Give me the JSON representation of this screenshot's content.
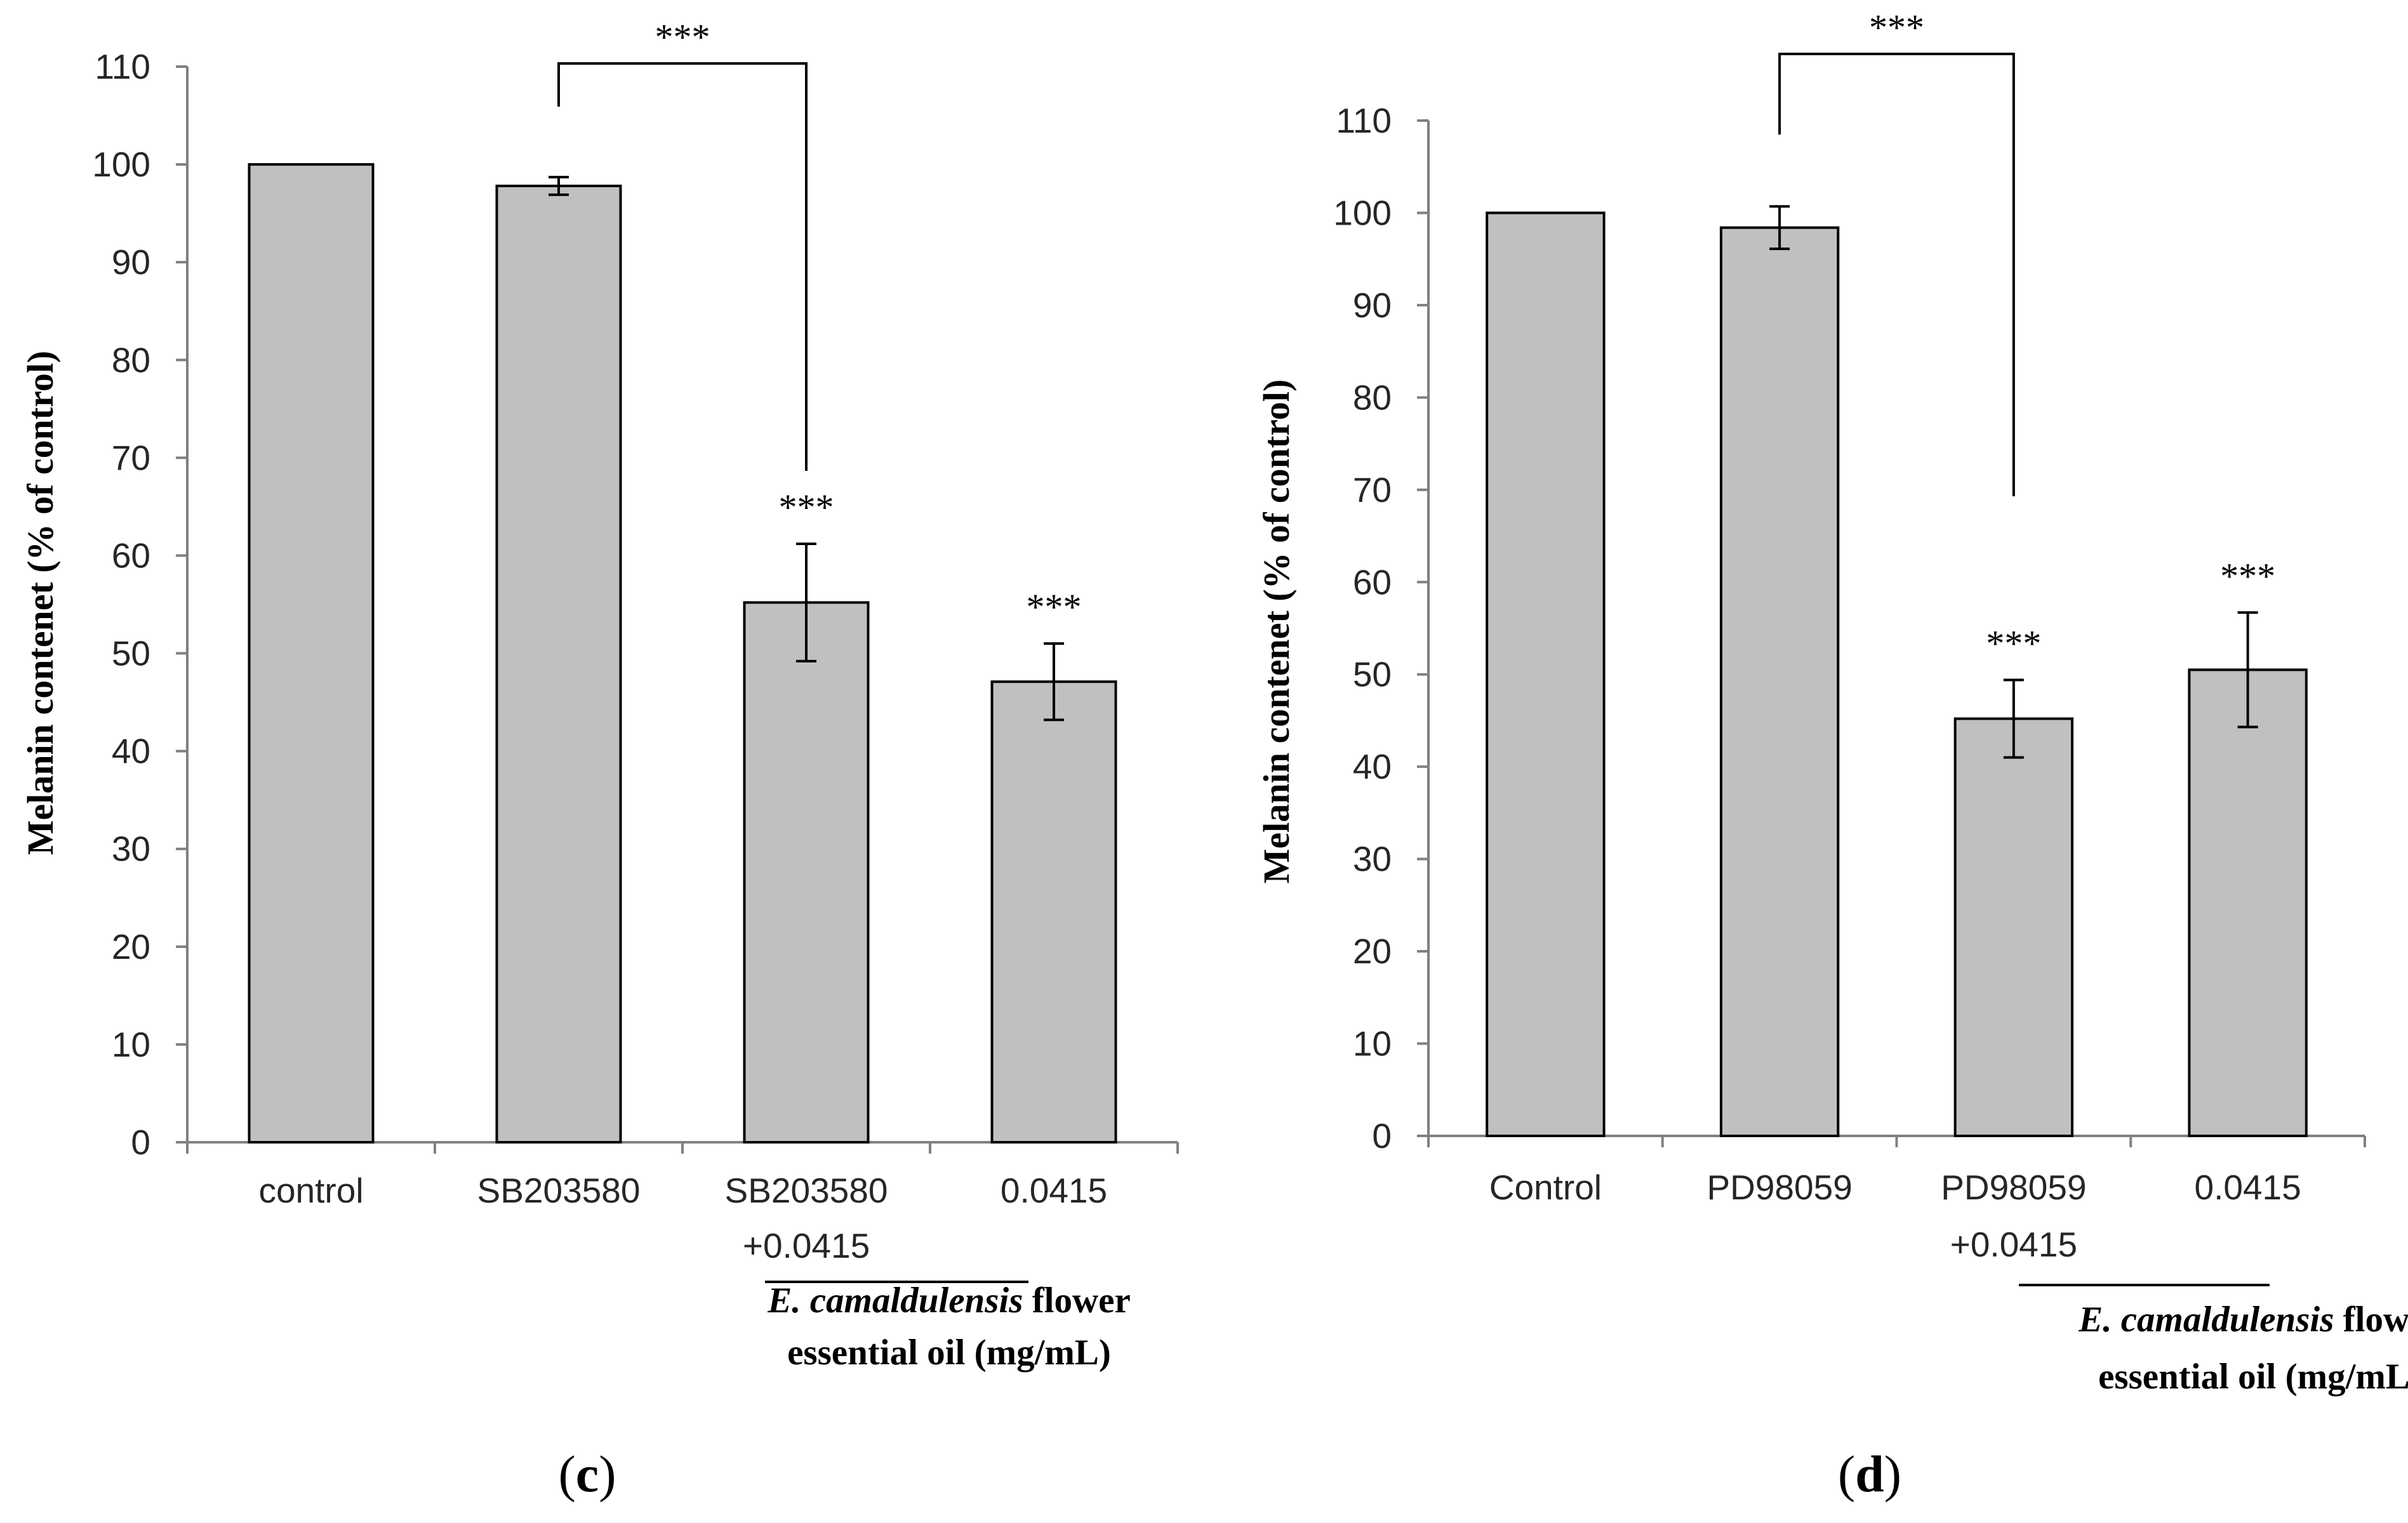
{
  "chart_data": [
    {
      "type": "bar",
      "panel": "c",
      "ylabel": "Melanin contenet (% of control)",
      "ylim": [
        0,
        110
      ],
      "yticks": [
        0,
        10,
        20,
        30,
        40,
        50,
        60,
        70,
        80,
        90,
        100,
        110
      ],
      "categories": [
        [
          "control"
        ],
        [
          "SB203580"
        ],
        [
          "SB203580",
          "+0.0415"
        ],
        [
          "0.0415"
        ]
      ],
      "values": [
        100,
        97.8,
        55.2,
        47.1
      ],
      "errors": [
        0,
        0.9,
        6.0,
        3.9
      ],
      "significance": [
        "",
        "",
        "***",
        "***"
      ],
      "bracket": {
        "from": 1,
        "to": 2,
        "label": "***"
      },
      "xnote": [
        "E. camaldulensis",
        "flower",
        "essential oil (mg/mL)"
      ]
    },
    {
      "type": "bar",
      "panel": "d",
      "ylabel": "Melanin contenet (% of control)",
      "ylim": [
        0,
        110
      ],
      "yticks": [
        0,
        10,
        20,
        30,
        40,
        50,
        60,
        70,
        80,
        90,
        100,
        110
      ],
      "categories": [
        [
          "Control"
        ],
        [
          "PD98059"
        ],
        [
          "PD98059",
          "+0.0415"
        ],
        [
          "0.0415"
        ]
      ],
      "values": [
        100,
        98.4,
        45.2,
        50.5
      ],
      "errors": [
        0,
        2.3,
        4.2,
        6.2
      ],
      "significance": [
        "",
        "",
        "***",
        "***"
      ],
      "bracket": {
        "from": 1,
        "to": 2,
        "label": "***"
      },
      "xnote": [
        "E. camaldulensis",
        "flower",
        "essential oil (mg/mL)"
      ]
    }
  ]
}
